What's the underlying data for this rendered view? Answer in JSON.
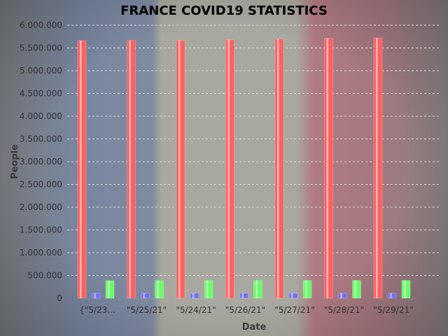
{
  "chart_data": {
    "type": "bar",
    "title": "FRANCE COVID19 STATISTICS",
    "xlabel": "Date",
    "ylabel": "People",
    "ylim": [
      0,
      6000000
    ],
    "y_ticks": [
      "0",
      "500.000",
      "1.000.000",
      "1.500.000",
      "2.000.000",
      "2.500.000",
      "3.000.000",
      "3.500.000",
      "4.000.000",
      "4.500.000",
      "5.000.000",
      "5.500.000",
      "6.000.000"
    ],
    "y_tick_values": [
      0,
      500000,
      1000000,
      1500000,
      2000000,
      2500000,
      3000000,
      3500000,
      4000000,
      4500000,
      5000000,
      5500000,
      6000000
    ],
    "categories": [
      "{\"5/23...",
      "\"5/25/21\"",
      "\"5/24/21\"",
      "\"5/26/21\"",
      "\"5/27/21\"",
      "\"5/28/21\"",
      "\"5/29/21\""
    ],
    "grid": true,
    "series": [
      {
        "color": "#ff6060",
        "values": [
          5660000,
          5665000,
          5665000,
          5680000,
          5695000,
          5710000,
          5720000
        ]
      },
      {
        "color": "#7070ff",
        "values": [
          108000,
          108100,
          108200,
          108300,
          108400,
          108500,
          108600
        ]
      },
      {
        "color": "#66ff66",
        "values": [
          385000,
          386000,
          387000,
          388000,
          389000,
          390000,
          391000
        ]
      }
    ]
  }
}
